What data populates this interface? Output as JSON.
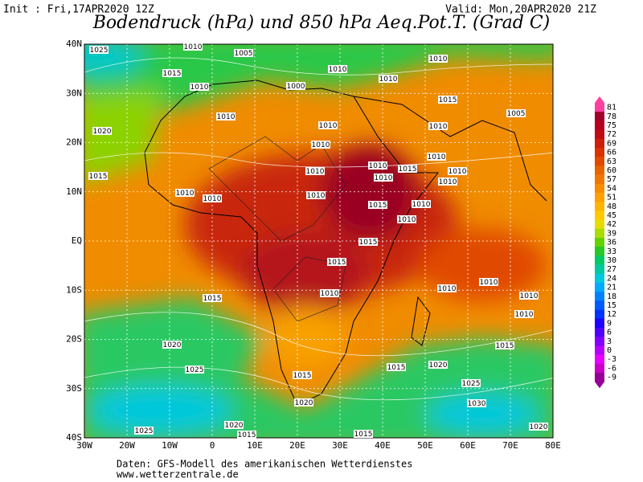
{
  "header": {
    "init": "Init : Fri,17APR2020 12Z",
    "valid": "Valid: Mon,20APR2020 21Z",
    "title": "Bodendruck (hPa) und 850 hPa Aeq.Pot.T. (Grad C)"
  },
  "map": {
    "lon_labels": [
      "30W",
      "20W",
      "10W",
      "0",
      "10E",
      "20E",
      "30E",
      "40E",
      "50E",
      "60E",
      "70E",
      "80E"
    ],
    "lat_labels": [
      "40N",
      "30N",
      "20N",
      "10N",
      "EQ",
      "10S",
      "20S",
      "30S",
      "40S"
    ],
    "isobar_labels": [
      "1025",
      "1010",
      "1005",
      "1010",
      "1010",
      "1015",
      "1010",
      "1010",
      "1000",
      "1015",
      "1010",
      "1005",
      "1010",
      "1010",
      "1020",
      "1010",
      "1010",
      "1010",
      "1015",
      "1010",
      "1015",
      "1010",
      "1010",
      "1010",
      "1010",
      "1010",
      "1010",
      "1015",
      "1010",
      "1010",
      "1015",
      "1015",
      "1010",
      "1010",
      "1010",
      "1015",
      "1010",
      "1010",
      "1020",
      "1015",
      "1025",
      "1020",
      "1015",
      "1015",
      "1025",
      "1030",
      "1020",
      "1020",
      "1025",
      "1015",
      "1015",
      "1020"
    ]
  },
  "colorbar": {
    "ticks": [
      81,
      78,
      75,
      72,
      69,
      66,
      63,
      60,
      57,
      54,
      51,
      48,
      45,
      42,
      39,
      36,
      33,
      30,
      27,
      24,
      21,
      18,
      15,
      12,
      9,
      6,
      3,
      0,
      -3,
      -6,
      -9
    ],
    "colors": [
      "#ff3fa0",
      "#a0002a",
      "#b4001e",
      "#c00a14",
      "#cc1e0a",
      "#d83200",
      "#e04a00",
      "#e86400",
      "#f07800",
      "#f88c00",
      "#ffa000",
      "#ffb400",
      "#ffc800",
      "#e6dc00",
      "#aadc00",
      "#64d200",
      "#28c828",
      "#00c864",
      "#00c8a0",
      "#00c8dc",
      "#00aaff",
      "#0082ff",
      "#005aff",
      "#0032ff",
      "#1e00ff",
      "#5000ff",
      "#8200ff",
      "#b400ff",
      "#e600ff",
      "#c800c8",
      "#960096"
    ]
  },
  "footer": {
    "source": "Daten: GFS-Modell des amerikanischen Wetterdienstes",
    "url": "www.wetterzentrale.de"
  }
}
